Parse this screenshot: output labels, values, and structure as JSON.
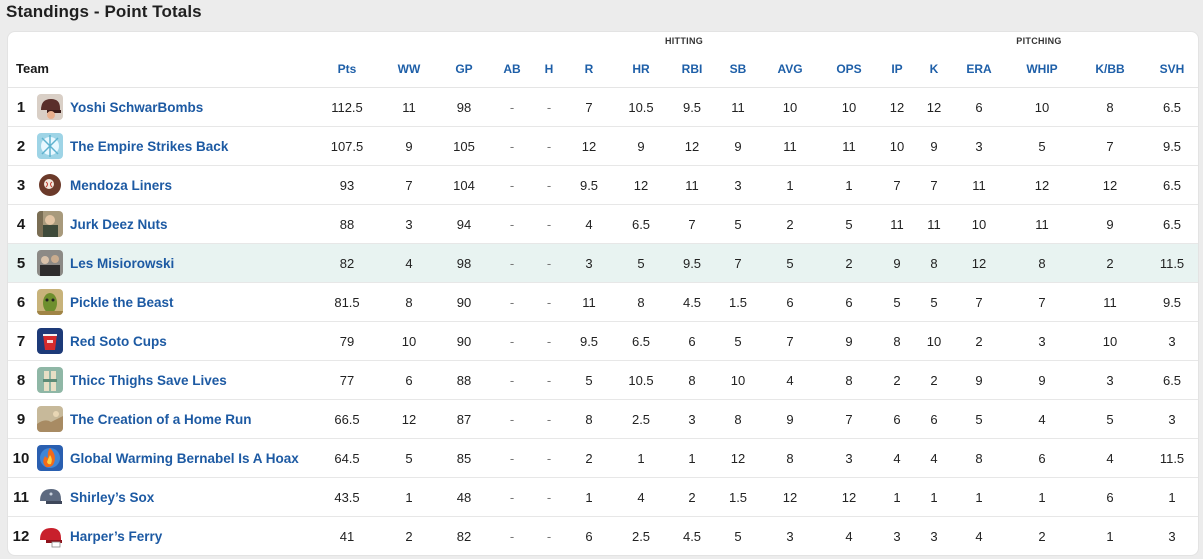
{
  "page_title": "Standings - Point Totals",
  "group_labels": {
    "hitting": "HITTING",
    "pitching": "PITCHING"
  },
  "columns": {
    "team": "Team",
    "pts": "Pts",
    "ww": "WW",
    "gp": "GP",
    "ab": "AB",
    "h": "H",
    "r": "R",
    "hr": "HR",
    "rbi": "RBI",
    "sb": "SB",
    "avg": "AVG",
    "ops": "OPS",
    "ip": "IP",
    "k": "K",
    "era": "ERA",
    "whip": "WHIP",
    "kbb": "K/BB",
    "svh": "SVH"
  },
  "highlighted_rank": "5",
  "teams": [
    {
      "rank": "1",
      "name": "Yoshi SchwarBombs",
      "logo": "helmet-logo",
      "pts": "112.5",
      "ww": "11",
      "gp": "98",
      "ab": "-",
      "h": "-",
      "r": "7",
      "hr": "10.5",
      "rbi": "9.5",
      "sb": "11",
      "avg": "10",
      "ops": "10",
      "ip": "12",
      "k": "12",
      "era": "6",
      "whip": "10",
      "kbb": "8",
      "svh": "6.5"
    },
    {
      "rank": "2",
      "name": "The Empire Strikes Back",
      "logo": "ice-logo",
      "pts": "107.5",
      "ww": "9",
      "gp": "105",
      "ab": "-",
      "h": "-",
      "r": "12",
      "hr": "9",
      "rbi": "12",
      "sb": "9",
      "avg": "11",
      "ops": "11",
      "ip": "10",
      "k": "9",
      "era": "3",
      "whip": "5",
      "kbb": "7",
      "svh": "9.5"
    },
    {
      "rank": "3",
      "name": "Mendoza Liners",
      "logo": "ball-logo",
      "pts": "93",
      "ww": "7",
      "gp": "104",
      "ab": "-",
      "h": "-",
      "r": "9.5",
      "hr": "12",
      "rbi": "11",
      "sb": "3",
      "avg": "1",
      "ops": "1",
      "ip": "7",
      "k": "7",
      "era": "11",
      "whip": "12",
      "kbb": "12",
      "svh": "6.5"
    },
    {
      "rank": "4",
      "name": "Jurk Deez Nuts",
      "logo": "photo-logo",
      "pts": "88",
      "ww": "3",
      "gp": "94",
      "ab": "-",
      "h": "-",
      "r": "4",
      "hr": "6.5",
      "rbi": "7",
      "sb": "5",
      "avg": "2",
      "ops": "5",
      "ip": "11",
      "k": "11",
      "era": "10",
      "whip": "11",
      "kbb": "9",
      "svh": "6.5"
    },
    {
      "rank": "5",
      "name": "Les Misiorowski",
      "logo": "crowd-logo",
      "pts": "82",
      "ww": "4",
      "gp": "98",
      "ab": "-",
      "h": "-",
      "r": "3",
      "hr": "5",
      "rbi": "9.5",
      "sb": "7",
      "avg": "5",
      "ops": "2",
      "ip": "9",
      "k": "8",
      "era": "12",
      "whip": "8",
      "kbb": "2",
      "svh": "11.5"
    },
    {
      "rank": "6",
      "name": "Pickle the Beast",
      "logo": "pickle-logo",
      "pts": "81.5",
      "ww": "8",
      "gp": "90",
      "ab": "-",
      "h": "-",
      "r": "11",
      "hr": "8",
      "rbi": "4.5",
      "sb": "1.5",
      "avg": "6",
      "ops": "6",
      "ip": "5",
      "k": "5",
      "era": "7",
      "whip": "7",
      "kbb": "11",
      "svh": "9.5"
    },
    {
      "rank": "7",
      "name": "Red Soto Cups",
      "logo": "cup-logo",
      "pts": "79",
      "ww": "10",
      "gp": "90",
      "ab": "-",
      "h": "-",
      "r": "9.5",
      "hr": "6.5",
      "rbi": "6",
      "sb": "5",
      "avg": "7",
      "ops": "9",
      "ip": "8",
      "k": "10",
      "era": "2",
      "whip": "3",
      "kbb": "10",
      "svh": "3"
    },
    {
      "rank": "8",
      "name": "Thicc Thighs Save Lives",
      "logo": "player-logo",
      "pts": "77",
      "ww": "6",
      "gp": "88",
      "ab": "-",
      "h": "-",
      "r": "5",
      "hr": "10.5",
      "rbi": "8",
      "sb": "10",
      "avg": "4",
      "ops": "8",
      "ip": "2",
      "k": "2",
      "era": "9",
      "whip": "9",
      "kbb": "3",
      "svh": "6.5"
    },
    {
      "rank": "9",
      "name": "The Creation of a Home Run",
      "logo": "painting-logo",
      "pts": "66.5",
      "ww": "12",
      "gp": "87",
      "ab": "-",
      "h": "-",
      "r": "8",
      "hr": "2.5",
      "rbi": "3",
      "sb": "8",
      "avg": "9",
      "ops": "7",
      "ip": "6",
      "k": "6",
      "era": "5",
      "whip": "4",
      "kbb": "5",
      "svh": "3"
    },
    {
      "rank": "10",
      "name": "Global Warming Bernabel Is A Hoax",
      "logo": "fire-logo",
      "pts": "64.5",
      "ww": "5",
      "gp": "85",
      "ab": "-",
      "h": "-",
      "r": "2",
      "hr": "1",
      "rbi": "1",
      "sb": "12",
      "avg": "8",
      "ops": "3",
      "ip": "4",
      "k": "4",
      "era": "8",
      "whip": "6",
      "kbb": "4",
      "svh": "11.5"
    },
    {
      "rank": "11",
      "name": "Shirley’s Sox",
      "logo": "helmet-gray-logo",
      "pts": "43.5",
      "ww": "1",
      "gp": "48",
      "ab": "-",
      "h": "-",
      "r": "1",
      "hr": "4",
      "rbi": "2",
      "sb": "1.5",
      "avg": "12",
      "ops": "12",
      "ip": "1",
      "k": "1",
      "era": "1",
      "whip": "1",
      "kbb": "6",
      "svh": "1"
    },
    {
      "rank": "12",
      "name": "Harper’s Ferry",
      "logo": "helmet-red-logo",
      "pts": "41",
      "ww": "2",
      "gp": "82",
      "ab": "-",
      "h": "-",
      "r": "6",
      "hr": "2.5",
      "rbi": "4.5",
      "sb": "5",
      "avg": "3",
      "ops": "4",
      "ip": "3",
      "k": "3",
      "era": "4",
      "whip": "2",
      "kbb": "1",
      "svh": "3"
    }
  ]
}
